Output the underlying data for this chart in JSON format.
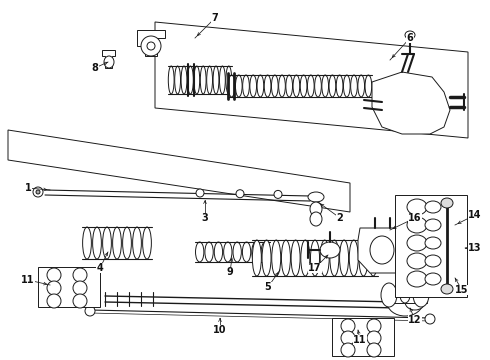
{
  "bg_color": "#ffffff",
  "lc": "#1a1a1a",
  "figsize": [
    4.9,
    3.6
  ],
  "dpi": 100,
  "lw": 0.7
}
